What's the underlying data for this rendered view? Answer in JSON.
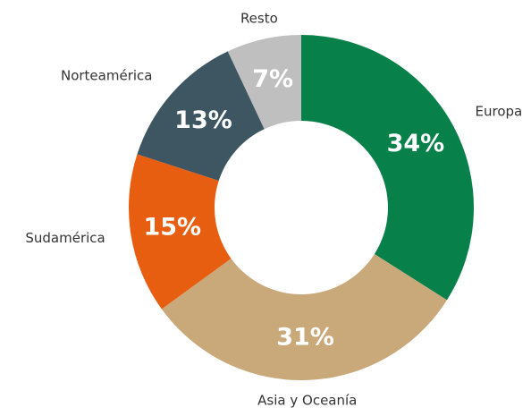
{
  "chart_data": {
    "type": "pie",
    "categories": [
      "Europa",
      "Asia y Oceanía",
      "Sudamérica",
      "Norteamérica",
      "Resto"
    ],
    "values": [
      34,
      31,
      15,
      13,
      7
    ],
    "value_labels": [
      "34%",
      "31%",
      "15%",
      "13%",
      "7%"
    ],
    "colors": [
      "#07804a",
      "#c9a979",
      "#e85e10",
      "#3e5562",
      "#bfbfbf"
    ]
  }
}
